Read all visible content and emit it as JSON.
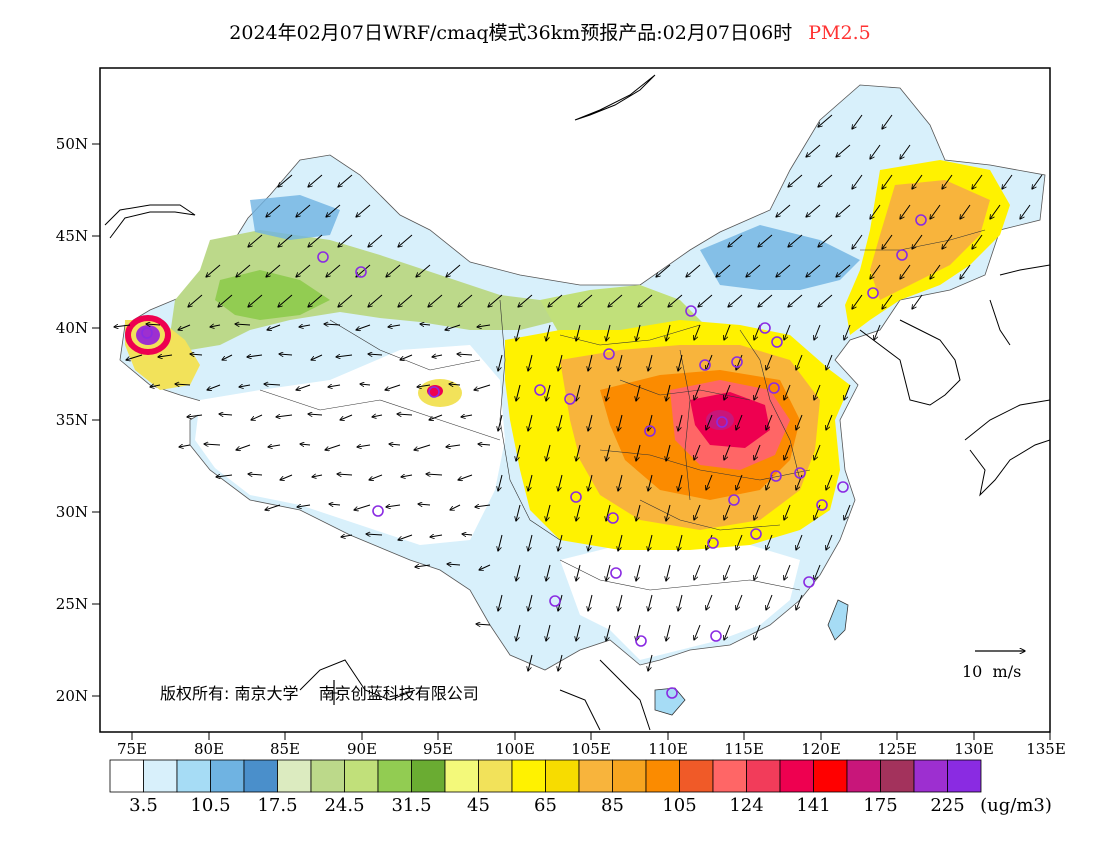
{
  "title": {
    "text": "2024年02月07日WRF/cmaq模式36km预报产品:02月07日06时",
    "pollutant": "PM2.5",
    "pollutant_color": "#ff3333"
  },
  "axes": {
    "lat_ticks": [
      "50N",
      "45N",
      "40N",
      "35N",
      "30N",
      "25N",
      "20N"
    ],
    "lon_ticks": [
      "75E",
      "80E",
      "85E",
      "90E",
      "95E",
      "100E",
      "105E",
      "110E",
      "115E",
      "120E",
      "125E",
      "130E",
      "135E"
    ]
  },
  "copyright": {
    "prefix": "版权所有:",
    "org1": "南京大学",
    "org2": "南京创蓝科技有限公司"
  },
  "wind_scale": {
    "label": "10  m/s"
  },
  "legend": {
    "unit": "(ug/m3)",
    "colors": [
      "#ffffff",
      "#d8f0fb",
      "#a6dcf5",
      "#6fb3e2",
      "#4a8fcb",
      "#dcebc0",
      "#bcd98a",
      "#c1e07a",
      "#92cc52",
      "#6aac32",
      "#f3f97a",
      "#f2e25a",
      "#fff200",
      "#f7dc00",
      "#f8b43c",
      "#f7a520",
      "#fb8b00",
      "#f05a28",
      "#ff6666",
      "#f23c5a",
      "#ee0050",
      "#ff0000",
      "#c8167a",
      "#a3325c",
      "#9d2fd0",
      "#8a2be2"
    ],
    "labels": [
      "3.5",
      "10.5",
      "17.5",
      "24.5",
      "31.5",
      "45",
      "65",
      "85",
      "105",
      "124",
      "141",
      "175",
      "225"
    ]
  },
  "colors": {
    "frame": "#000000",
    "city_marker": "#8a2be2"
  }
}
